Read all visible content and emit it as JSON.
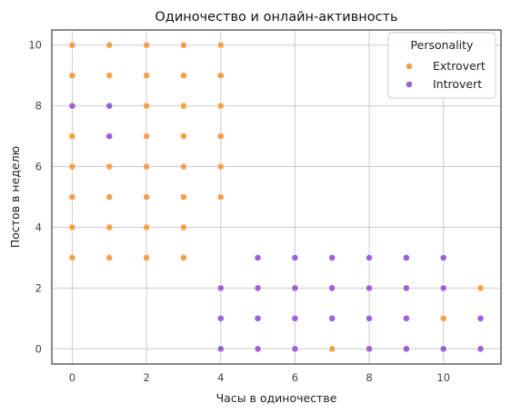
{
  "chart_data": {
    "type": "scatter",
    "title": "Одиночество и онлайн-активность",
    "xlabel": "Часы в одиночестве",
    "ylabel": "Постов в неделю",
    "xlim": [
      -0.55,
      11.55
    ],
    "ylim": [
      -0.5,
      10.5
    ],
    "xticks": [
      0,
      2,
      4,
      6,
      8,
      10
    ],
    "yticks": [
      0,
      2,
      4,
      6,
      8,
      10
    ],
    "grid": true,
    "legend": {
      "title": "Personality",
      "position": "top-right"
    },
    "series": [
      {
        "name": "Extrovert",
        "color": "#f5a04b",
        "points": [
          [
            0,
            3
          ],
          [
            0,
            4
          ],
          [
            0,
            5
          ],
          [
            0,
            6
          ],
          [
            0,
            7
          ],
          [
            0,
            9
          ],
          [
            0,
            10
          ],
          [
            1,
            3
          ],
          [
            1,
            4
          ],
          [
            1,
            5
          ],
          [
            1,
            6
          ],
          [
            1,
            9
          ],
          [
            1,
            10
          ],
          [
            2,
            3
          ],
          [
            2,
            4
          ],
          [
            2,
            5
          ],
          [
            2,
            6
          ],
          [
            2,
            7
          ],
          [
            2,
            8
          ],
          [
            2,
            9
          ],
          [
            2,
            10
          ],
          [
            3,
            3
          ],
          [
            3,
            4
          ],
          [
            3,
            5
          ],
          [
            3,
            6
          ],
          [
            3,
            7
          ],
          [
            3,
            8
          ],
          [
            3,
            9
          ],
          [
            3,
            10
          ],
          [
            4,
            5
          ],
          [
            4,
            6
          ],
          [
            4,
            7
          ],
          [
            4,
            8
          ],
          [
            4,
            9
          ],
          [
            4,
            10
          ],
          [
            7,
            0
          ],
          [
            10,
            1
          ],
          [
            11,
            2
          ]
        ]
      },
      {
        "name": "Introvert",
        "color": "#9b62d9",
        "points": [
          [
            0,
            8
          ],
          [
            1,
            8
          ],
          [
            1,
            7
          ],
          [
            4,
            0
          ],
          [
            4,
            1
          ],
          [
            4,
            2
          ],
          [
            5,
            0
          ],
          [
            5,
            1
          ],
          [
            5,
            2
          ],
          [
            5,
            3
          ],
          [
            6,
            0
          ],
          [
            6,
            1
          ],
          [
            6,
            2
          ],
          [
            6,
            3
          ],
          [
            7,
            1
          ],
          [
            7,
            2
          ],
          [
            7,
            3
          ],
          [
            8,
            0
          ],
          [
            8,
            1
          ],
          [
            8,
            2
          ],
          [
            8,
            3
          ],
          [
            9,
            0
          ],
          [
            9,
            1
          ],
          [
            9,
            2
          ],
          [
            9,
            3
          ],
          [
            10,
            0
          ],
          [
            10,
            2
          ],
          [
            10,
            3
          ],
          [
            11,
            0
          ],
          [
            11,
            1
          ]
        ]
      }
    ]
  }
}
